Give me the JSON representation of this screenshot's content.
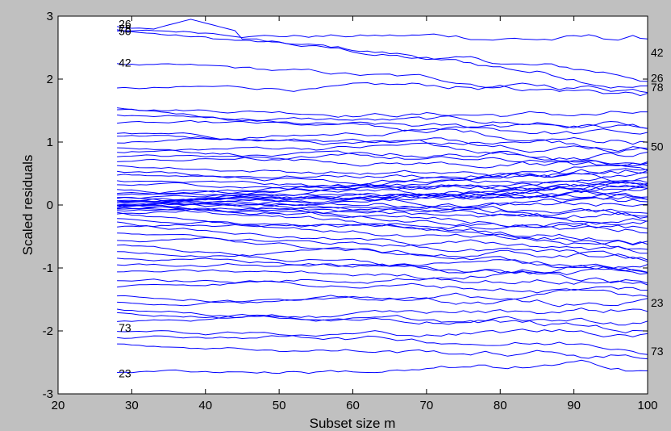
{
  "chart_data": {
    "type": "line",
    "title": "",
    "xlabel": "Subset size m",
    "ylabel": "Scaled residuals",
    "xlim": [
      20,
      100
    ],
    "ylim": [
      -3,
      3
    ],
    "xticks": [
      "20",
      "30",
      "40",
      "50",
      "60",
      "70",
      "80",
      "90",
      "100"
    ],
    "yticks": [
      "-3",
      "-2",
      "-1",
      "0",
      "1",
      "2",
      "3"
    ],
    "grid": false,
    "legend": "none",
    "line_color": "#0000ff",
    "x_range_of_lines": [
      28,
      100
    ],
    "series": [
      {
        "start": 2.83,
        "end": 1.92,
        "peak": 2.95
      },
      {
        "start": 2.78,
        "end": 2.02
      },
      {
        "start": 2.75,
        "end": 2.63
      },
      {
        "start": 2.25,
        "end": 1.78
      },
      {
        "start": 1.85,
        "end": 1.85
      },
      {
        "start": 1.55,
        "end": 1.42
      },
      {
        "start": 1.5,
        "end": 0.95
      },
      {
        "start": 1.42,
        "end": 1.25
      },
      {
        "start": 1.3,
        "end": 1.12
      },
      {
        "start": 1.15,
        "end": 0.72
      },
      {
        "start": 1.1,
        "end": 0.98
      },
      {
        "start": 1.0,
        "end": 1.31
      },
      {
        "start": 0.92,
        "end": 0.55
      },
      {
        "start": 0.85,
        "end": 1.02
      },
      {
        "start": 0.78,
        "end": 0.62
      },
      {
        "start": 0.7,
        "end": 0.85
      },
      {
        "start": 0.62,
        "end": 0.4
      },
      {
        "start": 0.55,
        "end": 0.22
      },
      {
        "start": 0.48,
        "end": 0.48
      },
      {
        "start": 0.4,
        "end": 0.05
      },
      {
        "start": 0.32,
        "end": 0.3
      },
      {
        "start": 0.25,
        "end": -0.05
      },
      {
        "start": 0.18,
        "end": 0.36
      },
      {
        "start": 0.15,
        "end": 0.12
      },
      {
        "start": 0.12,
        "end": -0.2
      },
      {
        "start": 0.1,
        "end": 0.45
      },
      {
        "start": 0.08,
        "end": 0.2
      },
      {
        "start": 0.06,
        "end": -0.35
      },
      {
        "start": 0.05,
        "end": 0.0
      },
      {
        "start": 0.03,
        "end": 0.3
      },
      {
        "start": 0.02,
        "end": -0.15
      },
      {
        "start": 0.01,
        "end": 0.55
      },
      {
        "start": 0.0,
        "end": -0.45
      },
      {
        "start": -0.01,
        "end": 0.1
      },
      {
        "start": -0.02,
        "end": -0.28
      },
      {
        "start": -0.04,
        "end": 0.65
      },
      {
        "start": -0.05,
        "end": -0.6
      },
      {
        "start": -0.07,
        "end": 0.25
      },
      {
        "start": -0.1,
        "end": -0.1
      },
      {
        "start": -0.12,
        "end": -0.75
      },
      {
        "start": -0.15,
        "end": 0.38
      },
      {
        "start": -0.2,
        "end": -0.52
      },
      {
        "start": -0.28,
        "end": -0.9
      },
      {
        "start": -0.35,
        "end": -0.22
      },
      {
        "start": -0.45,
        "end": -1.05
      },
      {
        "start": -0.55,
        "end": -0.68
      },
      {
        "start": -0.65,
        "end": -1.28
      },
      {
        "start": -0.75,
        "end": -0.82
      },
      {
        "start": -0.85,
        "end": -1.12
      },
      {
        "start": -0.95,
        "end": -0.98
      },
      {
        "start": -1.05,
        "end": -1.2
      },
      {
        "start": -1.2,
        "end": -1.35
      },
      {
        "start": -1.3,
        "end": -0.95
      },
      {
        "start": -1.45,
        "end": -1.58
      },
      {
        "start": -1.55,
        "end": -1.45
      },
      {
        "start": -1.65,
        "end": -2.0
      },
      {
        "start": -1.72,
        "end": -1.85
      },
      {
        "start": -1.85,
        "end": -1.65
      },
      {
        "start": -2.0,
        "end": -2.22
      },
      {
        "start": -2.1,
        "end": -2.0
      },
      {
        "start": -2.22,
        "end": -2.4
      },
      {
        "start": -2.65,
        "end": -2.6
      }
    ],
    "annotations_left": [
      {
        "label": "26",
        "y": 2.88
      },
      {
        "label": "78",
        "y": 2.8
      },
      {
        "label": "50",
        "y": 2.76
      },
      {
        "label": "42",
        "y": 2.26
      },
      {
        "label": "73",
        "y": -1.95
      },
      {
        "label": "23",
        "y": -2.67
      }
    ],
    "annotations_right": [
      {
        "label": "42",
        "y": 2.42
      },
      {
        "label": "26",
        "y": 2.02
      },
      {
        "label": "78",
        "y": 1.87
      },
      {
        "label": "50",
        "y": 0.93
      },
      {
        "label": "23",
        "y": -1.55
      },
      {
        "label": "73",
        "y": -2.32
      }
    ]
  }
}
